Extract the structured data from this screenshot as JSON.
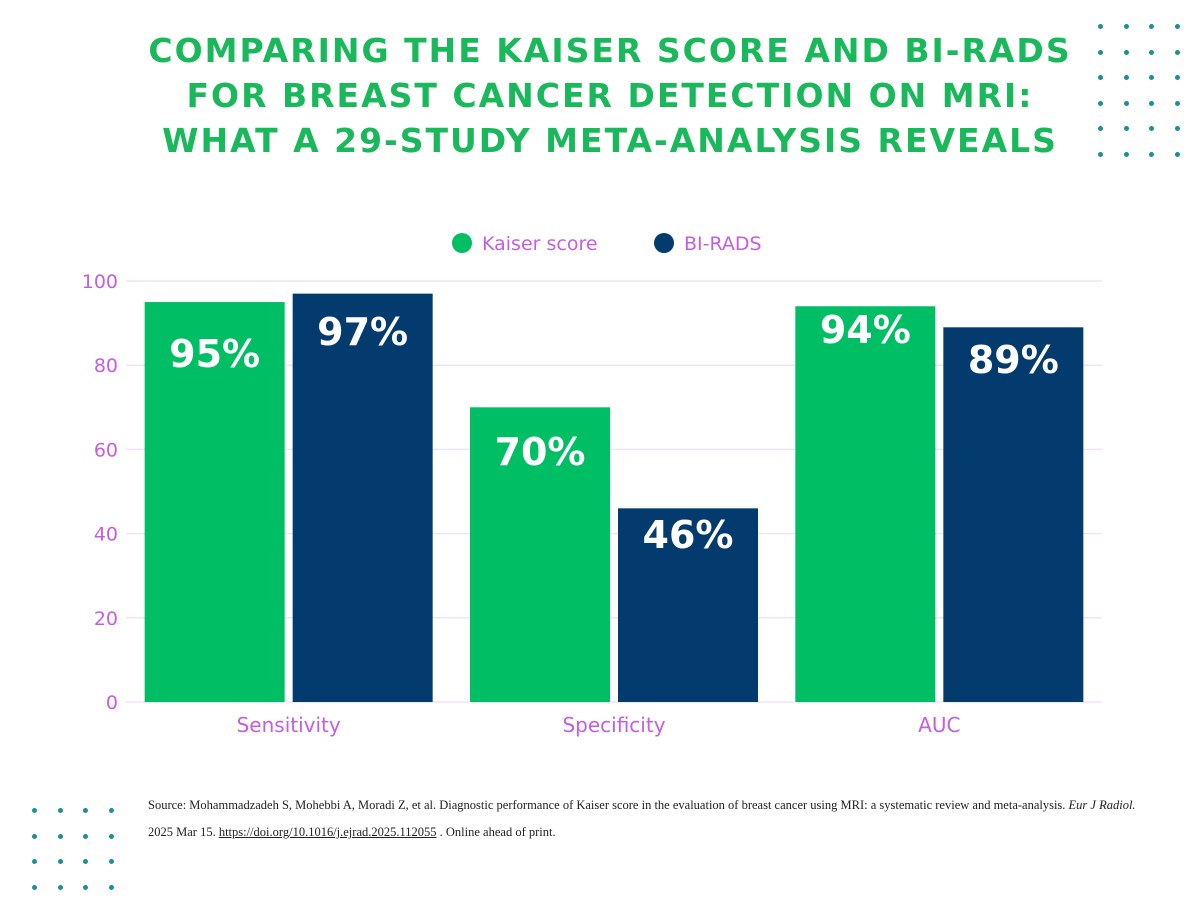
{
  "title": {
    "line1": "COMPARING THE KAISER SCORE AND BI-RADS",
    "line2": "FOR BREAST CANCER DETECTION ON MRI:",
    "line3": "WHAT A 29-STUDY META-ANALYSIS REVEALS"
  },
  "colors": {
    "title": "#19b85a",
    "kaiser": "#00be64",
    "birads": "#033b6e",
    "axis_text": "#c45ee0",
    "dots": "#1b8f99",
    "grid": "#efe4f4"
  },
  "chart_data": {
    "type": "bar",
    "categories": [
      "Sensitivity",
      "Specificity",
      "AUC"
    ],
    "series": [
      {
        "name": "Kaiser score",
        "values": [
          95,
          70,
          94
        ],
        "labels": [
          "95%",
          "70%",
          "94%"
        ]
      },
      {
        "name": "BI-RADS",
        "values": [
          97,
          46,
          89
        ],
        "labels": [
          "97%",
          "46%",
          "89%"
        ]
      }
    ],
    "ylim": [
      0,
      100
    ],
    "yticks": [
      "0",
      "20",
      "40",
      "60",
      "80",
      "100"
    ],
    "legend": "top-center",
    "grid": true
  },
  "source": {
    "prefix": "Source: Mohammadzadeh S, Mohebbi A, Moradi Z, et al. Diagnostic performance of Kaiser score in the evaluation of breast cancer using MRI: a systematic review and meta-analysis.",
    "journal": "Eur J Radiol.",
    "date": "2025 Mar 15.",
    "doi": "https://doi.org/10.1016/j.ejrad.2025.112055",
    "suffix": ". Online ahead of print."
  }
}
